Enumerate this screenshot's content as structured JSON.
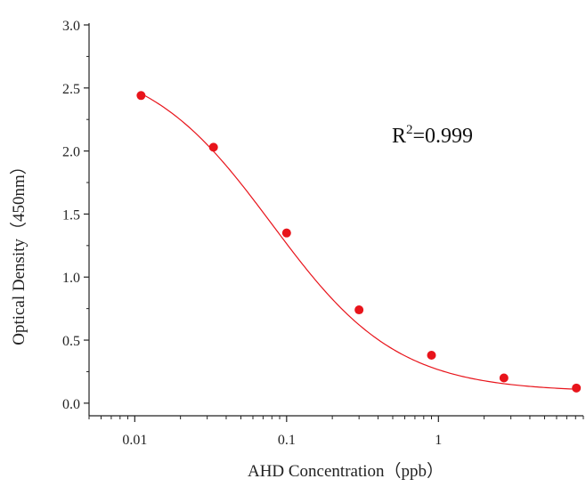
{
  "chart_data": {
    "type": "scatter",
    "xlabel": "AHD Concentration（ppb）",
    "ylabel": "Optical Density（450nm）",
    "xscale": "log",
    "xlim": [
      0.005,
      9
    ],
    "ylim": [
      -0.1,
      3.0
    ],
    "x_ticks": [
      {
        "value": 0.01,
        "label": "0.01"
      },
      {
        "value": 0.1,
        "label": "0.1"
      },
      {
        "value": 1,
        "label": "1"
      }
    ],
    "y_ticks": [
      {
        "value": 0.0,
        "label": "0.0"
      },
      {
        "value": 0.5,
        "label": "0.5"
      },
      {
        "value": 1.0,
        "label": "1.0"
      },
      {
        "value": 1.5,
        "label": "1.5"
      },
      {
        "value": 2.0,
        "label": "2.0"
      },
      {
        "value": 2.5,
        "label": "2.5"
      },
      {
        "value": 3.0,
        "label": "3.0"
      }
    ],
    "series": [
      {
        "type": "scatter",
        "color": "#e8141b",
        "x": [
          0.011,
          0.033,
          0.1,
          0.3,
          0.9,
          2.7,
          8.1
        ],
        "y": [
          2.44,
          2.03,
          1.35,
          0.74,
          0.38,
          0.2,
          0.12
        ]
      },
      {
        "type": "fit-line",
        "model": "four-parameter logistic",
        "color": "#e8141b",
        "params": {
          "A": 2.75,
          "D": 0.09,
          "C": 0.08,
          "B": 1.05
        }
      }
    ],
    "annotation": {
      "base": "R",
      "superscript": "2",
      "rest": "=0.999"
    },
    "grid": false,
    "legend": "none"
  }
}
